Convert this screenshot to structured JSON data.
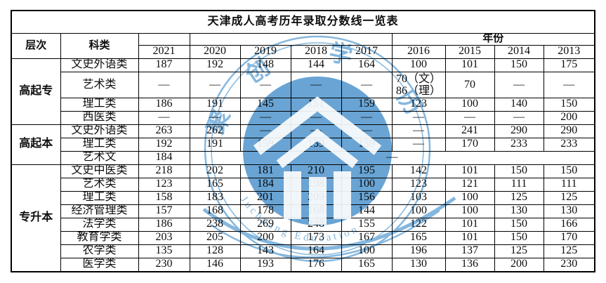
{
  "title": "天津成人高考历年录取分数线一览表",
  "header": {
    "level": "层次",
    "category": "科类",
    "year_label": "年份",
    "years": [
      "2021",
      "2020",
      "2019",
      "2018",
      "2017",
      "2016",
      "2015",
      "2014",
      "2013"
    ]
  },
  "chart_data": {
    "type": "table",
    "title": "天津成人高考历年录取分数线一览表",
    "columns": [
      "层次",
      "科类",
      "2021",
      "2020",
      "2019",
      "2018",
      "2017",
      "2016",
      "2015",
      "2014",
      "2013"
    ],
    "groups": [
      {
        "level": "高起专",
        "rows": [
          {
            "category": "文史外语类",
            "values": [
              "187",
              "192",
              "148",
              "144",
              "164",
              "100",
              "101",
              "150",
              "175"
            ]
          },
          {
            "category": "艺术类",
            "tall": true,
            "values": [
              "—",
              "—",
              "—",
              "—",
              "—",
              "70（文）\n86（理）",
              "70",
              "—",
              "—"
            ]
          },
          {
            "category": "理工类",
            "values": [
              "186",
              "191",
              "145",
              "151",
              "159",
              "123",
              "100",
              "140",
              "150"
            ]
          },
          {
            "category": "西医类",
            "values": [
              "—",
              "—",
              "—",
              "—",
              "—",
              "—",
              "—",
              "—",
              "200"
            ]
          }
        ]
      },
      {
        "level": "高起本",
        "rows": [
          {
            "category": "文史外语类",
            "values": [
              "263",
              "262",
              "—",
              "—",
              "—",
              "—",
              "241",
              "290",
              "290"
            ]
          },
          {
            "category": "理工类",
            "values": [
              "192",
              "191",
              "159",
              "159",
              "159",
              "—",
              "170",
              "233",
              "233"
            ]
          },
          {
            "category": "艺术文",
            "values": [
              "184"
            ],
            "merge_rest": 8,
            "merged_value": "—"
          }
        ]
      },
      {
        "level": "专升本",
        "rows": [
          {
            "category": "文史中医类",
            "values": [
              "218",
              "202",
              "181",
              "210",
              "195",
              "142",
              "101",
              "150",
              "150"
            ]
          },
          {
            "category": "艺术类",
            "values": [
              "123",
              "165",
              "184",
              "198",
              "100",
              "123",
              "121",
              "111",
              "111"
            ]
          },
          {
            "category": "理工类",
            "values": [
              "158",
              "183",
              "201",
              "209",
              "156",
              "103",
              "100",
              "125",
              "125"
            ]
          },
          {
            "category": "经济管理类",
            "values": [
              "157",
              "168",
              "178",
              "168",
              "144",
              "100",
              "100",
              "130",
              "130"
            ]
          },
          {
            "category": "法学类",
            "values": [
              "186",
              "238",
              "269",
              "248",
              "155",
              "122",
              "101",
              "150",
              "166"
            ]
          },
          {
            "category": "教育学类",
            "values": [
              "203",
              "205",
              "200",
              "173",
              "167",
              "165",
              "101",
              "150",
              "170"
            ]
          },
          {
            "category": "农学类",
            "values": [
              "135",
              "128",
              "143",
              "164",
              "100",
              "196",
              "137",
              "125",
              "125"
            ]
          },
          {
            "category": "医学类",
            "values": [
              "230",
              "146",
              "193",
              "176",
              "165",
              "130",
              "136",
              "200",
              "230"
            ]
          }
        ]
      }
    ]
  },
  "watermark": {
    "ring_chars": [
      "聚",
      "创",
      "学",
      "历"
    ],
    "curved_text": "Juchuang Education",
    "blue_disc": "#4f94cd",
    "blue_line": "#6faad8"
  }
}
